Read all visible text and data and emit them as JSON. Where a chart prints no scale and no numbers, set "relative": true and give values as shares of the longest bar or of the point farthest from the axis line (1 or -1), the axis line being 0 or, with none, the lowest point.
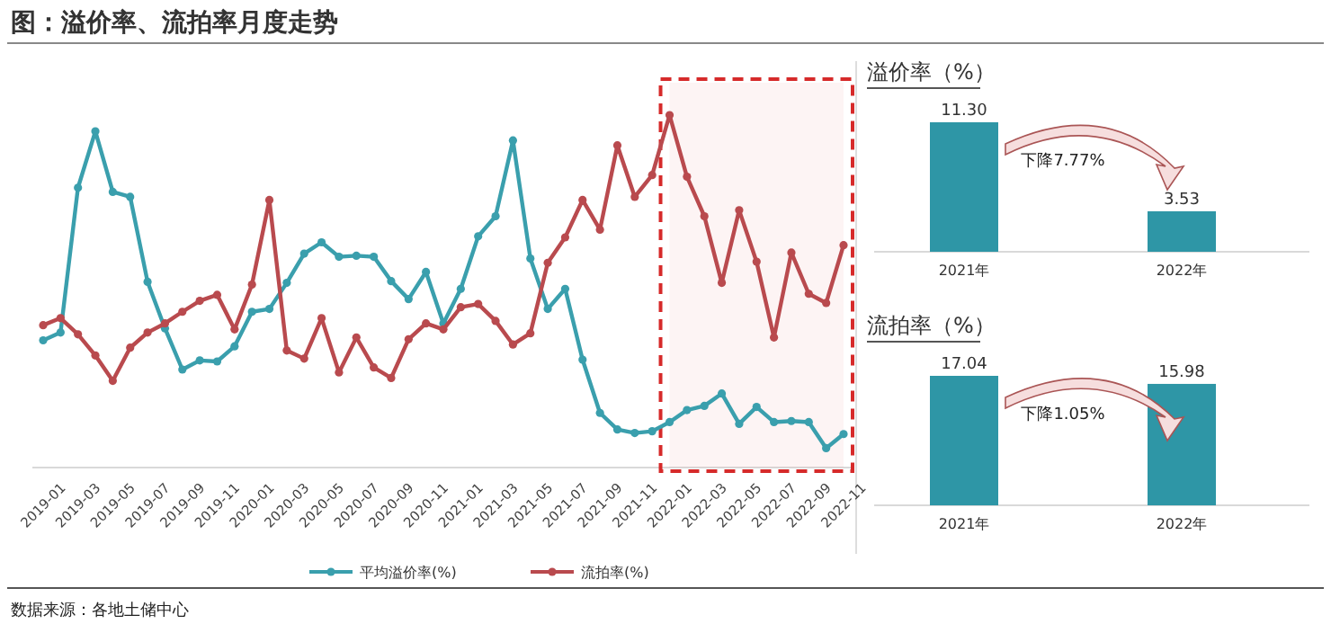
{
  "chart_data": [
    {
      "type": "line",
      "title": "图：溢价率、流拍率月度走势",
      "relative": true,
      "legend": "bottom",
      "marker": "circle",
      "line_style": "solid",
      "categories": [
        "2019-01",
        null,
        "2019-03",
        null,
        "2019-05",
        null,
        "2019-07",
        null,
        "2019-09",
        null,
        "2019-11",
        null,
        "2020-01",
        null,
        "2020-03",
        null,
        "2020-05",
        null,
        "2020-07",
        null,
        "2020-09",
        null,
        "2020-11",
        null,
        "2021-01",
        null,
        "2021-03",
        null,
        "2021-05",
        null,
        "2021-07",
        null,
        "2021-09",
        null,
        "2021-11",
        null,
        "2022-01",
        null,
        "2022-03",
        null,
        "2022-05",
        null,
        "2022-07",
        null,
        "2022-09",
        null,
        "2022-11"
      ],
      "series": [
        {
          "name": "平均溢价率(%)",
          "color": "#3a9fad",
          "values": [
            0.361,
            0.383,
            0.794,
            0.954,
            0.782,
            0.768,
            0.527,
            0.395,
            0.278,
            0.304,
            0.301,
            0.344,
            0.442,
            0.45,
            0.524,
            0.607,
            0.639,
            0.598,
            0.601,
            0.598,
            0.529,
            0.478,
            0.555,
            0.409,
            0.507,
            0.656,
            0.713,
            0.928,
            0.593,
            0.45,
            0.507,
            0.306,
            0.155,
            0.108,
            0.098,
            0.103,
            0.129,
            0.163,
            0.175,
            0.21,
            0.124,
            0.172,
            0.129,
            0.132,
            0.129,
            0.055,
            0.095
          ]
        },
        {
          "name": "流拍率(%)",
          "color": "#b94a4e",
          "values": [
            0.404,
            0.424,
            0.378,
            0.318,
            0.246,
            0.34,
            0.383,
            0.409,
            0.442,
            0.473,
            0.49,
            0.392,
            0.519,
            0.759,
            0.332,
            0.309,
            0.424,
            0.27,
            0.369,
            0.284,
            0.254,
            0.364,
            0.409,
            0.392,
            0.455,
            0.464,
            0.416,
            0.349,
            0.381,
            0.581,
            0.653,
            0.759,
            0.675,
            0.914,
            0.768,
            0.83,
            1,
            0.825,
            0.713,
            0.524,
            0.73,
            0.584,
            0.369,
            0.61,
            0.493,
            0.467,
            0.631
          ]
        }
      ],
      "bands": [
        {
          "axis": "x",
          "from": "2022-01",
          "to": "2022-11",
          "color": "#d62a2a"
        }
      ],
      "annotations": [
        "数据来源：各地土储中心"
      ]
    },
    {
      "type": "bar",
      "title": "溢价率（%）",
      "categories": [
        "2021年",
        "2022年"
      ],
      "values": [
        11.3,
        3.53
      ],
      "value_labels": [
        "11.30",
        "3.53"
      ],
      "color": "#2e96a6",
      "annotations": [
        "下降7.77%"
      ]
    },
    {
      "type": "bar",
      "title": "流拍率（%）",
      "categories": [
        "2021年",
        "2022年"
      ],
      "values": [
        17.04,
        15.98
      ],
      "value_labels": [
        "17.04",
        "15.98"
      ],
      "color": "#2e96a6",
      "annotations": [
        "下降1.05%"
      ]
    }
  ]
}
